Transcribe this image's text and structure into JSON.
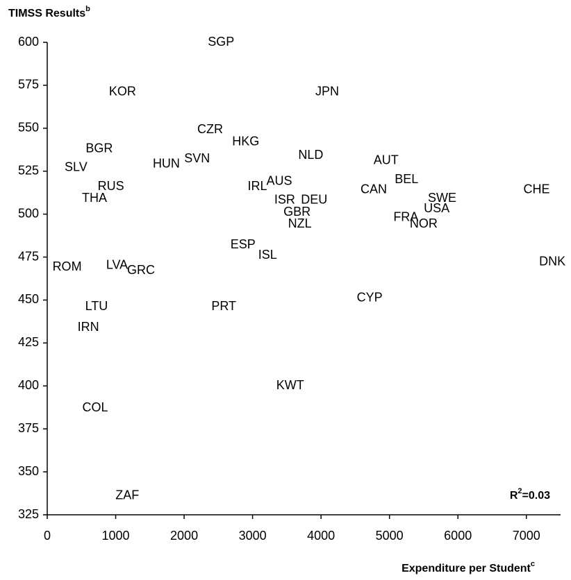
{
  "chart_data": {
    "type": "scatter",
    "ylabel": "TIMSS Results",
    "ylabel_note": "b",
    "xlabel": "Expenditure per Student",
    "xlabel_note": "c",
    "annotation_base": "R",
    "annotation_exp": "2",
    "annotation_rest": "=0.03",
    "labels": [
      "SGP",
      "KOR",
      "JPN",
      "CZR",
      "HKG",
      "BGR",
      "NLD",
      "AUT",
      "SVN",
      "HUN",
      "SLV",
      "AUS",
      "BEL",
      "IRL",
      "RUS",
      "CAN",
      "CHE",
      "THA",
      "SWE",
      "ISR",
      "DEU",
      "USA",
      "GBR",
      "FRA",
      "NOR",
      "NZL",
      "ESP",
      "ISL",
      "ROM",
      "LVA",
      "GRC",
      "DNK",
      "CYP",
      "LTU",
      "PRT",
      "IRN",
      "KWT",
      "COL",
      "ZAF"
    ],
    "x": [
      2540,
      1100,
      4090,
      2380,
      2900,
      760,
      3850,
      4950,
      2190,
      1740,
      420,
      3390,
      5250,
      3070,
      930,
      4770,
      7150,
      690,
      5770,
      3470,
      3900,
      5690,
      3650,
      5240,
      5500,
      3690,
      2860,
      3220,
      290,
      1020,
      1370,
      7380,
      4710,
      720,
      2580,
      600,
      3550,
      700,
      1170
    ],
    "values": [
      600,
      571,
      571,
      549,
      542,
      538,
      534,
      531,
      532,
      529,
      527,
      519,
      520,
      516,
      516,
      514,
      514,
      509,
      509,
      508,
      508,
      503,
      501,
      498,
      494,
      494,
      482,
      476,
      469,
      470,
      467,
      472,
      451,
      446,
      446,
      434,
      400,
      387,
      336
    ],
    "xlim": [
      0,
      7500
    ],
    "xticks": [
      0,
      1000,
      2000,
      3000,
      4000,
      5000,
      6000,
      7000
    ],
    "ylim": [
      325,
      600
    ],
    "yticks": [
      325,
      350,
      375,
      400,
      425,
      450,
      475,
      500,
      525,
      550,
      575,
      600
    ],
    "color": "#000000"
  }
}
